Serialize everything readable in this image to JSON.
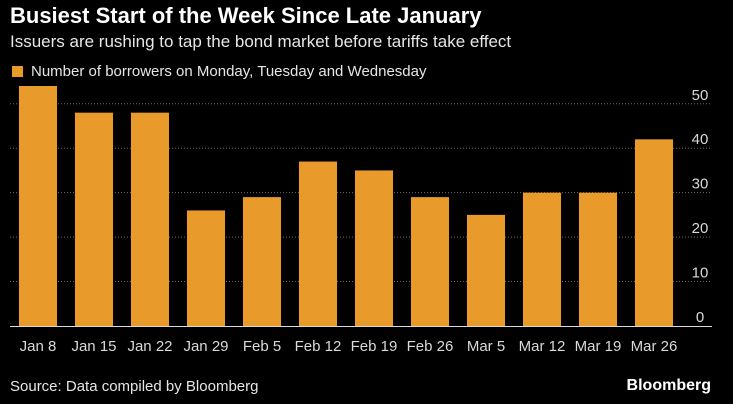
{
  "colors": {
    "bar": "#E89A2B",
    "grid": "#6b6b6b",
    "axis": "#d9d9d9",
    "background": "#000000"
  },
  "header": {
    "title": "Busiest Start of the Week Since Late January",
    "subtitle": "Issuers are rushing to tap the bond market before tariffs take effect"
  },
  "footer": {
    "source": "Source: Data compiled by Bloomberg",
    "brand": "Bloomberg"
  },
  "chart_data": {
    "type": "bar",
    "categories": [
      "Jan 8",
      "Jan 15",
      "Jan 22",
      "Jan 29",
      "Feb 5",
      "Feb 12",
      "Feb 19",
      "Feb 26",
      "Mar 5",
      "Mar 12",
      "Mar 19",
      "Mar 26"
    ],
    "series": [
      {
        "name": "Number of borrowers on Monday, Tuesday and Wednesday",
        "values": [
          54,
          48,
          48,
          26,
          29,
          37,
          35,
          29,
          25,
          30,
          30,
          42
        ]
      }
    ],
    "ylim": [
      0,
      54
    ],
    "yticks": [
      0,
      10,
      20,
      30,
      40,
      50
    ],
    "axis_position": "right",
    "grid": true,
    "legend": "top-left"
  }
}
